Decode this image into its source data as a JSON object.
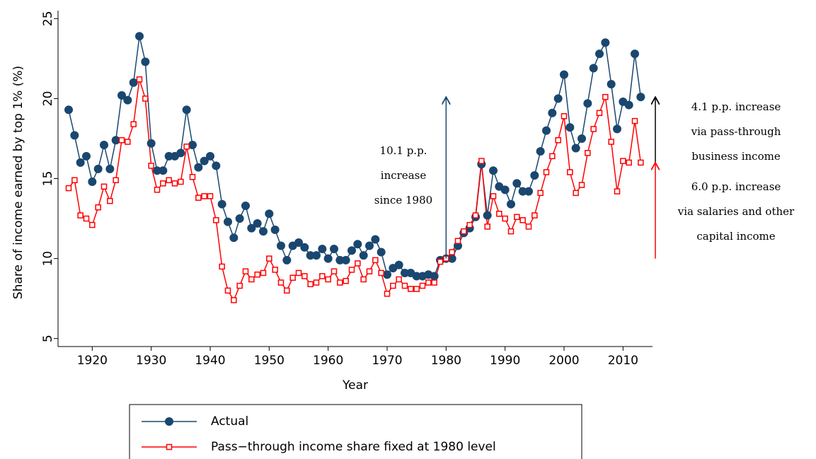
{
  "chart_data": {
    "type": "line",
    "y_label": "Share of income earned by top 1% (%)",
    "x_label": "Year",
    "x": [
      1916,
      1917,
      1918,
      1919,
      1920,
      1921,
      1922,
      1923,
      1924,
      1925,
      1926,
      1927,
      1928,
      1929,
      1930,
      1931,
      1932,
      1933,
      1934,
      1935,
      1936,
      1937,
      1938,
      1939,
      1940,
      1941,
      1942,
      1943,
      1944,
      1945,
      1946,
      1947,
      1948,
      1949,
      1950,
      1951,
      1952,
      1953,
      1954,
      1955,
      1956,
      1957,
      1958,
      1959,
      1960,
      1961,
      1962,
      1963,
      1964,
      1965,
      1966,
      1967,
      1968,
      1969,
      1970,
      1971,
      1972,
      1973,
      1974,
      1975,
      1976,
      1977,
      1978,
      1979,
      1980,
      1981,
      1982,
      1983,
      1984,
      1985,
      1986,
      1987,
      1988,
      1989,
      1990,
      1991,
      1992,
      1993,
      1994,
      1995,
      1996,
      1997,
      1998,
      1999,
      2000,
      2001,
      2002,
      2003,
      2004,
      2005,
      2006,
      2007,
      2008,
      2009,
      2010,
      2011,
      2012,
      2013
    ],
    "series": [
      {
        "name": "Actual",
        "color": "#1a476f",
        "marker": "circle",
        "values": [
          19.3,
          17.7,
          16.0,
          16.4,
          14.8,
          15.6,
          17.1,
          15.6,
          17.4,
          20.2,
          19.9,
          21.0,
          23.9,
          22.3,
          17.2,
          15.5,
          15.5,
          16.4,
          16.4,
          16.6,
          19.3,
          17.1,
          15.7,
          16.1,
          16.4,
          15.8,
          13.4,
          12.3,
          11.3,
          12.5,
          13.3,
          11.9,
          12.2,
          11.7,
          12.8,
          11.8,
          10.8,
          9.9,
          10.8,
          11.0,
          10.7,
          10.2,
          10.2,
          10.6,
          10.0,
          10.6,
          9.9,
          9.9,
          10.5,
          10.9,
          10.2,
          10.8,
          11.2,
          10.4,
          9.0,
          9.4,
          9.6,
          9.1,
          9.1,
          8.9,
          8.9,
          9.0,
          8.9,
          9.9,
          10.0,
          10.0,
          10.8,
          11.6,
          11.9,
          12.6,
          15.9,
          12.7,
          15.5,
          14.5,
          14.3,
          13.4,
          14.7,
          14.2,
          14.2,
          15.2,
          16.7,
          18.0,
          19.1,
          20.0,
          21.5,
          18.2,
          16.9,
          17.5,
          19.7,
          21.9,
          22.8,
          23.5,
          20.9,
          18.1,
          19.8,
          19.6,
          22.8,
          20.1
        ]
      },
      {
        "name": "Pass−through income share fixed at 1980 level",
        "color": "#ff0000",
        "marker": "square",
        "values": [
          14.4,
          14.9,
          12.7,
          12.5,
          12.1,
          13.2,
          14.5,
          13.6,
          14.9,
          17.4,
          17.3,
          18.4,
          21.2,
          20.0,
          15.8,
          14.3,
          14.7,
          14.9,
          14.7,
          14.8,
          17.0,
          15.1,
          13.8,
          13.9,
          13.9,
          12.4,
          9.5,
          8.0,
          7.4,
          8.3,
          9.2,
          8.7,
          9.0,
          9.1,
          10.0,
          9.3,
          8.5,
          8.0,
          8.8,
          9.1,
          8.9,
          8.4,
          8.5,
          8.9,
          8.7,
          9.2,
          8.5,
          8.6,
          9.3,
          9.7,
          8.7,
          9.2,
          9.9,
          9.1,
          7.8,
          8.3,
          8.7,
          8.3,
          8.1,
          8.1,
          8.3,
          8.5,
          8.5,
          9.8,
          10.0,
          10.4,
          11.1,
          11.7,
          12.1,
          12.7,
          16.1,
          12.0,
          13.9,
          12.8,
          12.5,
          11.7,
          12.6,
          12.4,
          12.0,
          12.7,
          14.1,
          15.4,
          16.4,
          17.4,
          18.9,
          15.4,
          14.1,
          14.6,
          16.6,
          18.1,
          19.1,
          20.1,
          17.3,
          14.2,
          16.1,
          16.0,
          18.6,
          16.0
        ]
      }
    ],
    "xlim": [
      1914.2,
      2015.0
    ],
    "xticks": [
      1920,
      1930,
      1940,
      1950,
      1960,
      1970,
      1980,
      1990,
      2000,
      2010
    ],
    "ylim": [
      4.5,
      25.5
    ],
    "yticks": [
      5,
      10,
      15,
      20,
      25
    ],
    "annotations": [
      {
        "lines": [
          "10.1 p.p.",
          "increase",
          "since 1980"
        ],
        "color": "#1a476f"
      },
      {
        "lines": [
          "4.1 p.p. increase",
          "via pass-through",
          "business income"
        ],
        "color": "#000000"
      },
      {
        "lines": [
          "6.0 p.p. increase",
          "via salaries and other",
          "capital income"
        ],
        "color": "#ff0000"
      }
    ]
  }
}
